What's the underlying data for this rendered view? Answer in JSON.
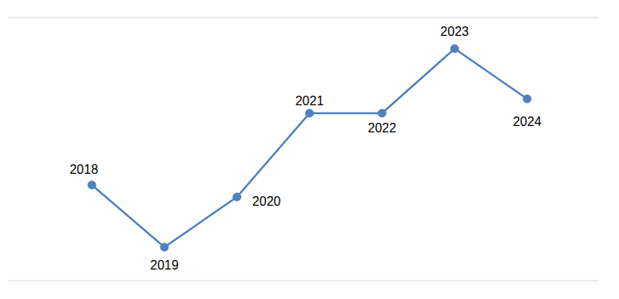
{
  "chart_data": {
    "type": "line",
    "categories": [
      "2018",
      "2019",
      "2020",
      "2021",
      "2022",
      "2023",
      "2024"
    ],
    "values": [
      4,
      1.4,
      3.5,
      7,
      7,
      9.7,
      7.6
    ],
    "color": "#4f81bd",
    "marker": "circle",
    "ylim": [
      0,
      11
    ],
    "yticks": [
      0,
      1,
      2,
      3,
      4,
      5,
      6,
      7,
      8,
      9,
      10,
      11
    ],
    "grid": true,
    "tick_labels": false
  }
}
